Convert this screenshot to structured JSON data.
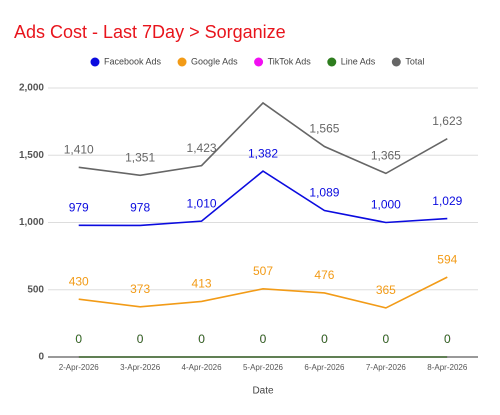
{
  "chart_data": {
    "type": "line",
    "title": "Ads Cost - Last 7Day > Sorganize",
    "x_label": "Date",
    "categories": [
      "2-Apr-2026",
      "3-Apr-2026",
      "4-Apr-2026",
      "5-Apr-2026",
      "6-Apr-2026",
      "7-Apr-2026",
      "8-Apr-2026"
    ],
    "series": [
      {
        "name": "Facebook Ads",
        "color": "#0b0bdf",
        "values": [
          979,
          978,
          1010,
          1382,
          1089,
          1000,
          1029
        ],
        "value_labels": [
          "979",
          "978",
          "1,010",
          "1,382",
          "1,089",
          "1,000",
          "1,029"
        ]
      },
      {
        "name": "Google Ads",
        "color": "#f29b17",
        "values": [
          430,
          373,
          413,
          507,
          476,
          365,
          594
        ]
      },
      {
        "name": "TikTok Ads",
        "color": "#f20ff2",
        "values": [
          0,
          0,
          0,
          0,
          0,
          0,
          0
        ]
      },
      {
        "name": "Line Ads",
        "color": "#2e7d1e",
        "values": [
          0,
          0,
          0,
          0,
          0,
          0,
          0
        ],
        "value_labels": [
          "0",
          "0",
          "0",
          "0",
          "0",
          "0",
          "0"
        ]
      },
      {
        "name": "Total",
        "color": "#666666",
        "values": [
          1410,
          1351,
          1423,
          1889,
          1565,
          1365,
          1623
        ],
        "value_labels": [
          "1,410",
          "1,351",
          "1,423",
          null,
          "1,565",
          "1,365",
          "1,623"
        ]
      }
    ],
    "ylim": [
      0,
      2000
    ],
    "yticks": [
      0,
      500,
      {
        "value": 1000,
        "label": "1,000"
      },
      {
        "value": 1500,
        "label": "1,500"
      },
      {
        "value": 2000,
        "label": "2,000"
      }
    ],
    "grid": true
  }
}
